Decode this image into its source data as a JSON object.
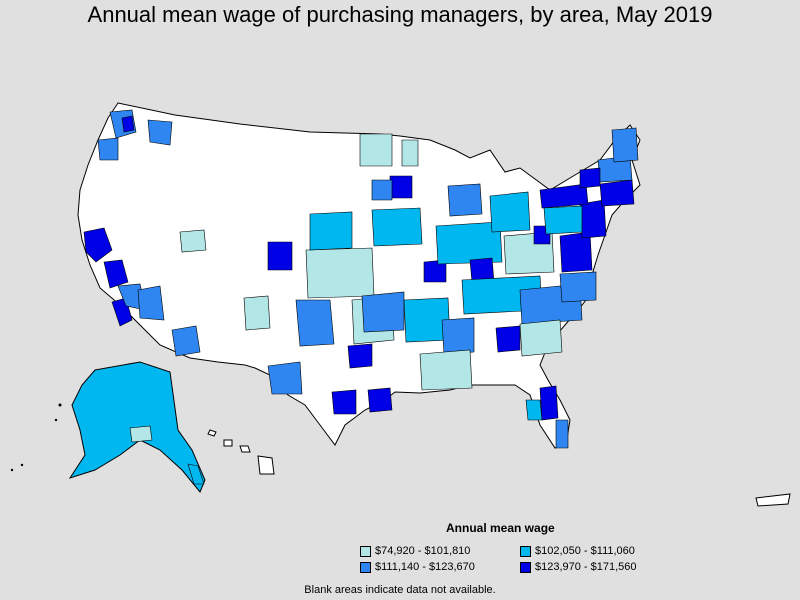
{
  "title": "Annual mean wage of purchasing managers, by area, May 2019",
  "legend": {
    "title": "Annual mean wage",
    "items": [
      {
        "label": "$74,920 - $101,810",
        "color": "#b3e6e6"
      },
      {
        "label": "$102,050 - $111,060",
        "color": "#00b7f0"
      },
      {
        "label": "$111,140 - $123,670",
        "color": "#2f86f0"
      },
      {
        "label": "$123,970 - $171,560",
        "color": "#0000e6"
      }
    ]
  },
  "note": "Blank areas indicate data not available.",
  "colors": {
    "background": "#e0e0e0",
    "land": "#ffffff",
    "border": "#000000"
  }
}
